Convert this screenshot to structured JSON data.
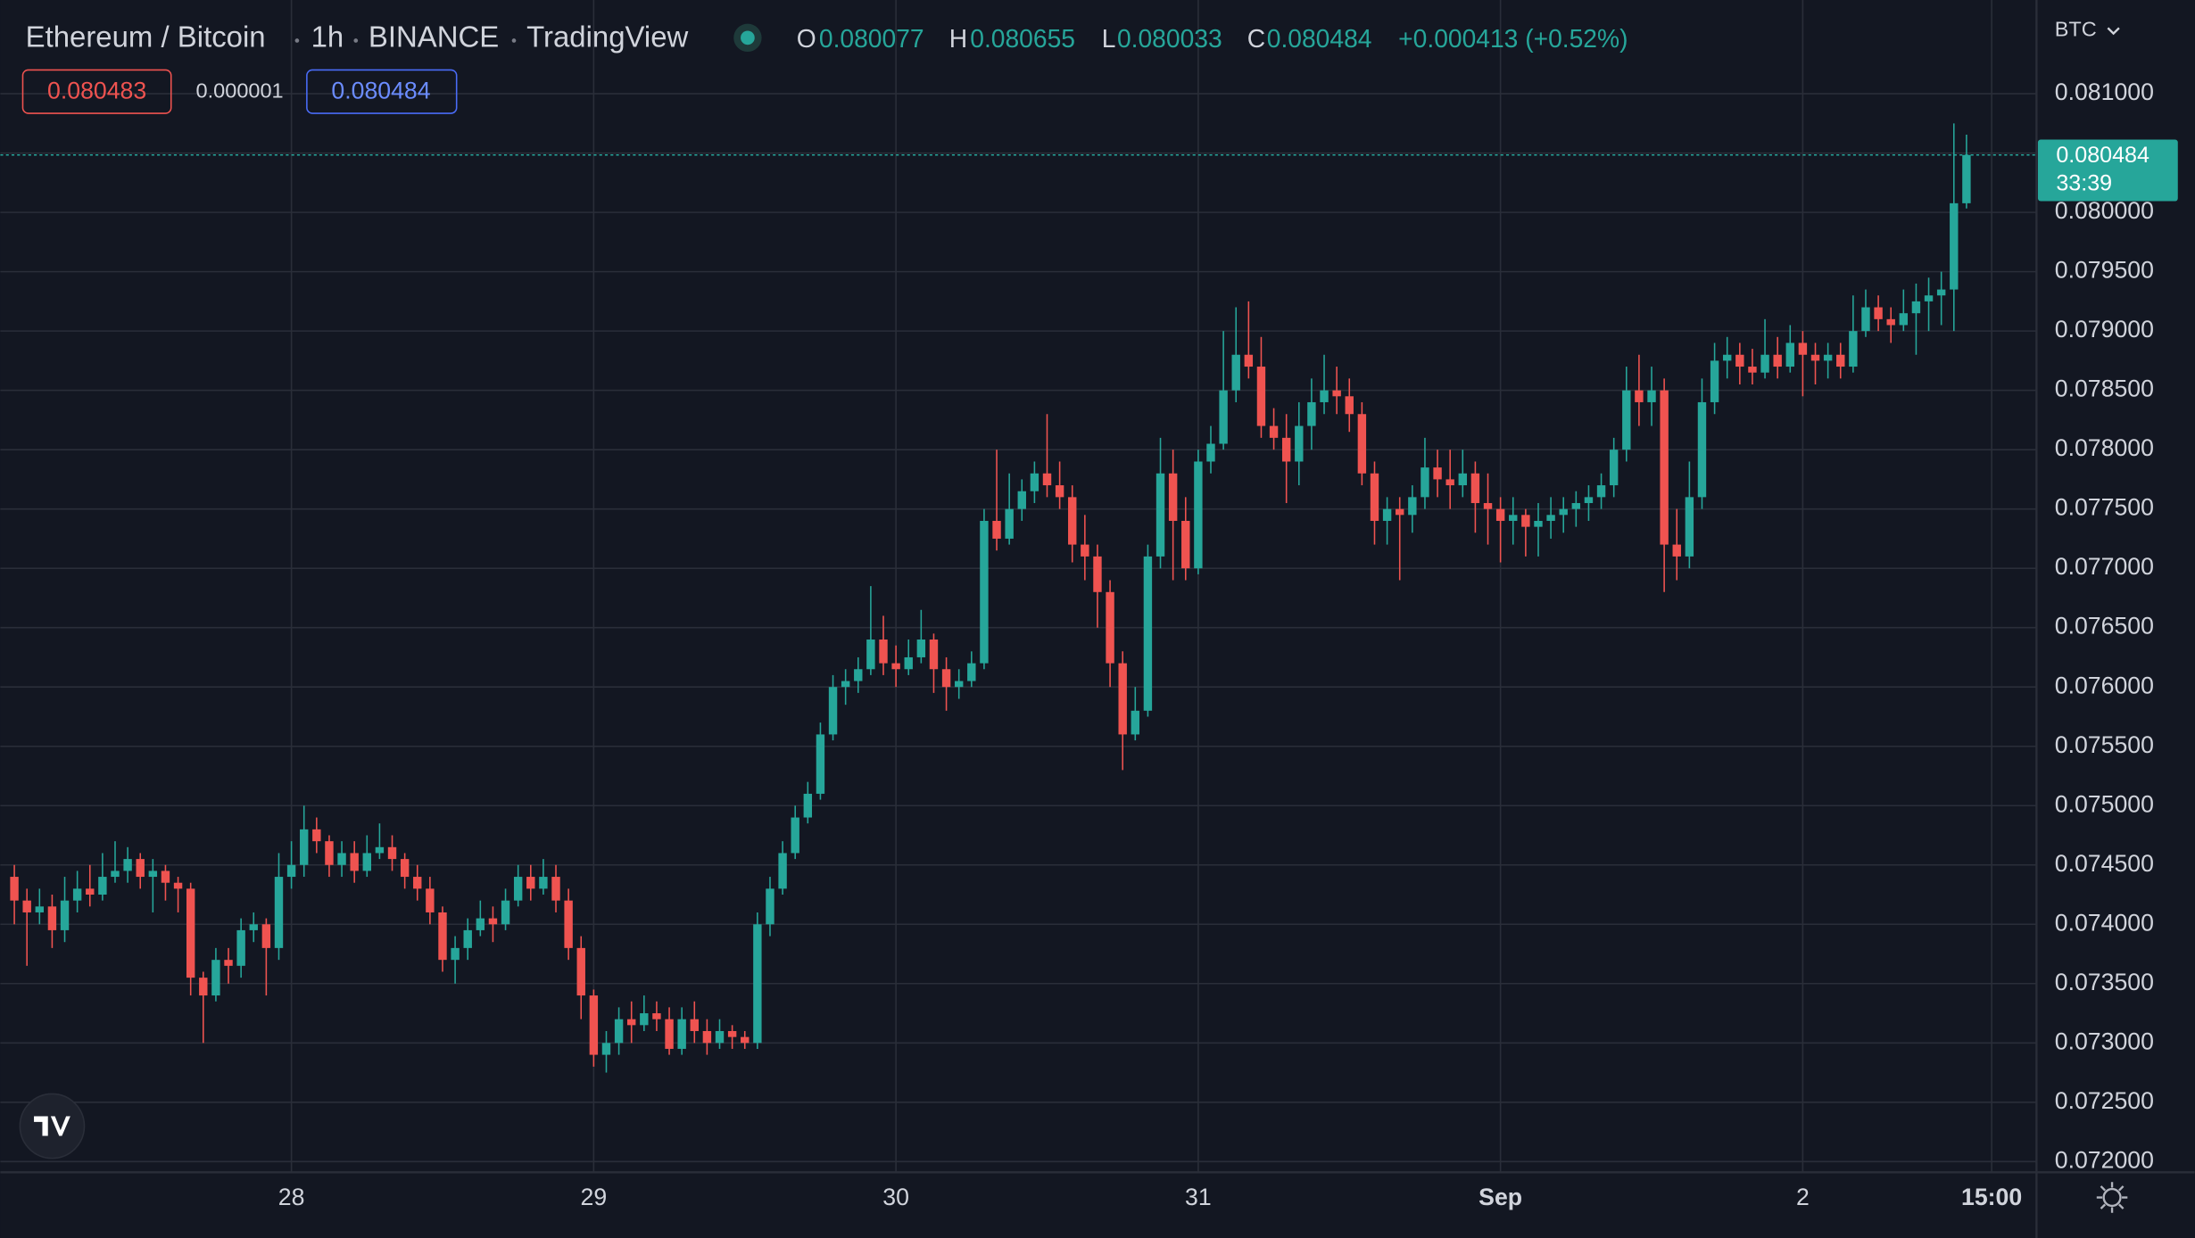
{
  "chart_data": {
    "type": "candlestick",
    "title": "Ethereum / Bitcoin",
    "interval": "1h",
    "exchange": "BINANCE",
    "source": "TradingView",
    "legend": [
      {
        "label": "O",
        "value": "0.080077"
      },
      {
        "label": "H",
        "value": "0.080655"
      },
      {
        "label": "L",
        "value": "0.080033"
      },
      {
        "label": "C",
        "value": "0.080484"
      }
    ],
    "change": "+0.000413 (+0.52%)",
    "bid": "0.080483",
    "spread": "0.000001",
    "ask": "0.080484",
    "currency": "BTC",
    "last_price": {
      "label": "0.080484",
      "countdown": "33:39"
    },
    "up_color": "#26a69a",
    "down_color": "#ef5350",
    "grid": true,
    "xlim": [
      -1.11,
      160.56
    ],
    "xticks": [
      {
        "value": 22,
        "label": "28"
      },
      {
        "value": 46,
        "label": "29"
      },
      {
        "value": 70,
        "label": "30"
      },
      {
        "value": 94,
        "label": "31"
      },
      {
        "value": 118,
        "label": "Sep"
      },
      {
        "value": 142,
        "label": "2"
      },
      {
        "value": 157,
        "label": "15:00"
      }
    ],
    "ylim": [
      0.07191,
      0.08179
    ],
    "yticks": [
      {
        "value": 0.072,
        "label": "0.072000"
      },
      {
        "value": 0.0725,
        "label": "0.072500"
      },
      {
        "value": 0.073,
        "label": "0.073000"
      },
      {
        "value": 0.0735,
        "label": "0.073500"
      },
      {
        "value": 0.074,
        "label": "0.074000"
      },
      {
        "value": 0.0745,
        "label": "0.074500"
      },
      {
        "value": 0.075,
        "label": "0.075000"
      },
      {
        "value": 0.0755,
        "label": "0.075500"
      },
      {
        "value": 0.076,
        "label": "0.076000"
      },
      {
        "value": 0.0765,
        "label": "0.076500"
      },
      {
        "value": 0.077,
        "label": "0.077000"
      },
      {
        "value": 0.0775,
        "label": "0.077500"
      },
      {
        "value": 0.078,
        "label": "0.078000"
      },
      {
        "value": 0.0785,
        "label": "0.078500"
      },
      {
        "value": 0.079,
        "label": "0.079000"
      },
      {
        "value": 0.0795,
        "label": "0.079500"
      },
      {
        "value": 0.08,
        "label": "0.080000"
      },
      {
        "value": 0.0805,
        "label": "0.080500"
      },
      {
        "value": 0.081,
        "label": "0.081000"
      }
    ],
    "candles": [
      [
        0.0744,
        0.0745,
        0.074,
        0.0742
      ],
      [
        0.0742,
        0.0743,
        0.07365,
        0.0741
      ],
      [
        0.0741,
        0.0743,
        0.074,
        0.07415
      ],
      [
        0.07415,
        0.07425,
        0.0738,
        0.07395
      ],
      [
        0.07395,
        0.0744,
        0.07385,
        0.0742
      ],
      [
        0.0742,
        0.07445,
        0.0741,
        0.0743
      ],
      [
        0.0743,
        0.0745,
        0.07415,
        0.07425
      ],
      [
        0.07425,
        0.0746,
        0.0742,
        0.0744
      ],
      [
        0.0744,
        0.0747,
        0.07435,
        0.07445
      ],
      [
        0.07445,
        0.07465,
        0.07435,
        0.07455
      ],
      [
        0.07455,
        0.0746,
        0.0743,
        0.0744
      ],
      [
        0.0744,
        0.07455,
        0.0741,
        0.07445
      ],
      [
        0.07445,
        0.0745,
        0.0742,
        0.07435
      ],
      [
        0.07435,
        0.0744,
        0.0741,
        0.0743
      ],
      [
        0.0743,
        0.07435,
        0.0734,
        0.07355
      ],
      [
        0.07355,
        0.0736,
        0.073,
        0.0734
      ],
      [
        0.0734,
        0.0738,
        0.07335,
        0.0737
      ],
      [
        0.0737,
        0.0738,
        0.0735,
        0.07365
      ],
      [
        0.07365,
        0.07405,
        0.07355,
        0.07395
      ],
      [
        0.07395,
        0.0741,
        0.07385,
        0.074
      ],
      [
        0.074,
        0.07405,
        0.0734,
        0.0738
      ],
      [
        0.0738,
        0.0746,
        0.0737,
        0.0744
      ],
      [
        0.0744,
        0.0747,
        0.0743,
        0.0745
      ],
      [
        0.0745,
        0.075,
        0.0744,
        0.0748
      ],
      [
        0.0748,
        0.0749,
        0.0746,
        0.0747
      ],
      [
        0.0747,
        0.07475,
        0.0744,
        0.0745
      ],
      [
        0.0745,
        0.0747,
        0.0744,
        0.0746
      ],
      [
        0.0746,
        0.0747,
        0.07435,
        0.07445
      ],
      [
        0.07445,
        0.07475,
        0.0744,
        0.0746
      ],
      [
        0.0746,
        0.07485,
        0.07455,
        0.07465
      ],
      [
        0.07465,
        0.07475,
        0.07445,
        0.07455
      ],
      [
        0.07455,
        0.0746,
        0.0743,
        0.0744
      ],
      [
        0.0744,
        0.0745,
        0.0742,
        0.0743
      ],
      [
        0.0743,
        0.0744,
        0.074,
        0.0741
      ],
      [
        0.0741,
        0.07415,
        0.0736,
        0.0737
      ],
      [
        0.0737,
        0.0739,
        0.0735,
        0.0738
      ],
      [
        0.0738,
        0.07405,
        0.0737,
        0.07395
      ],
      [
        0.07395,
        0.0742,
        0.0739,
        0.07405
      ],
      [
        0.07405,
        0.07415,
        0.07385,
        0.074
      ],
      [
        0.074,
        0.0743,
        0.07395,
        0.0742
      ],
      [
        0.0742,
        0.0745,
        0.07415,
        0.0744
      ],
      [
        0.0744,
        0.0745,
        0.0742,
        0.0743
      ],
      [
        0.0743,
        0.07455,
        0.07425,
        0.0744
      ],
      [
        0.0744,
        0.0745,
        0.0741,
        0.0742
      ],
      [
        0.0742,
        0.0743,
        0.0737,
        0.0738
      ],
      [
        0.0738,
        0.0739,
        0.0732,
        0.0734
      ],
      [
        0.0734,
        0.07345,
        0.0728,
        0.0729
      ],
      [
        0.0729,
        0.0731,
        0.07275,
        0.073
      ],
      [
        0.073,
        0.0733,
        0.0729,
        0.0732
      ],
      [
        0.0732,
        0.07335,
        0.073,
        0.07315
      ],
      [
        0.07315,
        0.0734,
        0.0731,
        0.07325
      ],
      [
        0.07325,
        0.07335,
        0.0731,
        0.0732
      ],
      [
        0.0732,
        0.0733,
        0.0729,
        0.07295
      ],
      [
        0.07295,
        0.0733,
        0.0729,
        0.0732
      ],
      [
        0.0732,
        0.07335,
        0.073,
        0.0731
      ],
      [
        0.0731,
        0.0732,
        0.0729,
        0.073
      ],
      [
        0.073,
        0.0732,
        0.07295,
        0.0731
      ],
      [
        0.0731,
        0.07315,
        0.07295,
        0.07305
      ],
      [
        0.07305,
        0.0731,
        0.07295,
        0.073
      ],
      [
        0.073,
        0.0741,
        0.07295,
        0.074
      ],
      [
        0.074,
        0.0744,
        0.0739,
        0.0743
      ],
      [
        0.0743,
        0.0747,
        0.07425,
        0.0746
      ],
      [
        0.0746,
        0.075,
        0.07455,
        0.0749
      ],
      [
        0.0749,
        0.0752,
        0.07485,
        0.0751
      ],
      [
        0.0751,
        0.0757,
        0.07505,
        0.0756
      ],
      [
        0.0756,
        0.0761,
        0.07555,
        0.076
      ],
      [
        0.076,
        0.07615,
        0.07585,
        0.07605
      ],
      [
        0.07605,
        0.07625,
        0.07595,
        0.07615
      ],
      [
        0.07615,
        0.07685,
        0.0761,
        0.0764
      ],
      [
        0.0764,
        0.0766,
        0.0761,
        0.0762
      ],
      [
        0.0762,
        0.07635,
        0.076,
        0.07615
      ],
      [
        0.07615,
        0.0764,
        0.0761,
        0.07625
      ],
      [
        0.07625,
        0.07665,
        0.0762,
        0.0764
      ],
      [
        0.0764,
        0.07645,
        0.07595,
        0.07615
      ],
      [
        0.07615,
        0.07625,
        0.0758,
        0.076
      ],
      [
        0.076,
        0.07615,
        0.0759,
        0.07605
      ],
      [
        0.07605,
        0.0763,
        0.076,
        0.0762
      ],
      [
        0.0762,
        0.0775,
        0.07615,
        0.0774
      ],
      [
        0.0774,
        0.078,
        0.07715,
        0.07725
      ],
      [
        0.07725,
        0.0778,
        0.0772,
        0.0775
      ],
      [
        0.0775,
        0.07775,
        0.0774,
        0.07765
      ],
      [
        0.07765,
        0.0779,
        0.07755,
        0.0778
      ],
      [
        0.0778,
        0.0783,
        0.0776,
        0.0777
      ],
      [
        0.0777,
        0.0779,
        0.0775,
        0.0776
      ],
      [
        0.0776,
        0.0777,
        0.07705,
        0.0772
      ],
      [
        0.0772,
        0.07745,
        0.0769,
        0.0771
      ],
      [
        0.0771,
        0.0772,
        0.0765,
        0.0768
      ],
      [
        0.0768,
        0.0769,
        0.076,
        0.0762
      ],
      [
        0.0762,
        0.0763,
        0.0753,
        0.0756
      ],
      [
        0.0756,
        0.076,
        0.07555,
        0.0758
      ],
      [
        0.0758,
        0.0772,
        0.07575,
        0.0771
      ],
      [
        0.0771,
        0.0781,
        0.077,
        0.0778
      ],
      [
        0.0778,
        0.078,
        0.0769,
        0.0774
      ],
      [
        0.0774,
        0.0776,
        0.0769,
        0.077
      ],
      [
        0.077,
        0.078,
        0.07695,
        0.0779
      ],
      [
        0.0779,
        0.0782,
        0.0778,
        0.07805
      ],
      [
        0.07805,
        0.079,
        0.078,
        0.0785
      ],
      [
        0.0785,
        0.0792,
        0.0784,
        0.0788
      ],
      [
        0.0788,
        0.07925,
        0.0786,
        0.0787
      ],
      [
        0.0787,
        0.07895,
        0.0781,
        0.0782
      ],
      [
        0.0782,
        0.07835,
        0.078,
        0.0781
      ],
      [
        0.0781,
        0.0783,
        0.07755,
        0.0779
      ],
      [
        0.0779,
        0.0784,
        0.0777,
        0.0782
      ],
      [
        0.0782,
        0.0786,
        0.078,
        0.0784
      ],
      [
        0.0784,
        0.0788,
        0.0783,
        0.0785
      ],
      [
        0.0785,
        0.0787,
        0.0783,
        0.07845
      ],
      [
        0.07845,
        0.0786,
        0.07815,
        0.0783
      ],
      [
        0.0783,
        0.0784,
        0.0777,
        0.0778
      ],
      [
        0.0778,
        0.0779,
        0.0772,
        0.0774
      ],
      [
        0.0774,
        0.0776,
        0.0772,
        0.0775
      ],
      [
        0.0775,
        0.0776,
        0.0769,
        0.07745
      ],
      [
        0.07745,
        0.0777,
        0.0773,
        0.0776
      ],
      [
        0.0776,
        0.0781,
        0.0775,
        0.07785
      ],
      [
        0.07785,
        0.078,
        0.0776,
        0.07775
      ],
      [
        0.07775,
        0.078,
        0.0775,
        0.0777
      ],
      [
        0.0777,
        0.078,
        0.0776,
        0.0778
      ],
      [
        0.0778,
        0.0779,
        0.0773,
        0.07755
      ],
      [
        0.07755,
        0.0778,
        0.0772,
        0.0775
      ],
      [
        0.0775,
        0.0776,
        0.07705,
        0.0774
      ],
      [
        0.0774,
        0.0776,
        0.0772,
        0.07745
      ],
      [
        0.07745,
        0.0775,
        0.0771,
        0.07735
      ],
      [
        0.07735,
        0.07755,
        0.0771,
        0.0774
      ],
      [
        0.0774,
        0.0776,
        0.07725,
        0.07745
      ],
      [
        0.07745,
        0.0776,
        0.0773,
        0.0775
      ],
      [
        0.0775,
        0.07765,
        0.07735,
        0.07755
      ],
      [
        0.07755,
        0.0777,
        0.0774,
        0.0776
      ],
      [
        0.0776,
        0.0778,
        0.0775,
        0.0777
      ],
      [
        0.0777,
        0.0781,
        0.0776,
        0.078
      ],
      [
        0.078,
        0.0787,
        0.0779,
        0.0785
      ],
      [
        0.0785,
        0.0788,
        0.0782,
        0.0784
      ],
      [
        0.0784,
        0.0787,
        0.0782,
        0.0785
      ],
      [
        0.0785,
        0.0786,
        0.0768,
        0.0772
      ],
      [
        0.0772,
        0.0775,
        0.0769,
        0.0771
      ],
      [
        0.0771,
        0.0779,
        0.077,
        0.0776
      ],
      [
        0.0776,
        0.0786,
        0.0775,
        0.0784
      ],
      [
        0.0784,
        0.0789,
        0.0783,
        0.07875
      ],
      [
        0.07875,
        0.07895,
        0.0786,
        0.0788
      ],
      [
        0.0788,
        0.0789,
        0.07855,
        0.0787
      ],
      [
        0.0787,
        0.07885,
        0.07855,
        0.07865
      ],
      [
        0.07865,
        0.0791,
        0.0786,
        0.0788
      ],
      [
        0.0788,
        0.07895,
        0.0786,
        0.0787
      ],
      [
        0.0787,
        0.07905,
        0.07865,
        0.0789
      ],
      [
        0.0789,
        0.079,
        0.07845,
        0.0788
      ],
      [
        0.0788,
        0.0789,
        0.07855,
        0.07875
      ],
      [
        0.07875,
        0.0789,
        0.0786,
        0.0788
      ],
      [
        0.0788,
        0.0789,
        0.0786,
        0.0787
      ],
      [
        0.0787,
        0.0793,
        0.07865,
        0.079
      ],
      [
        0.079,
        0.07935,
        0.07895,
        0.0792
      ],
      [
        0.0792,
        0.0793,
        0.079,
        0.0791
      ],
      [
        0.0791,
        0.0792,
        0.0789,
        0.07905
      ],
      [
        0.07905,
        0.07935,
        0.079,
        0.07915
      ],
      [
        0.07915,
        0.0794,
        0.0788,
        0.07925
      ],
      [
        0.07925,
        0.07945,
        0.079,
        0.0793
      ],
      [
        0.0793,
        0.0795,
        0.07905,
        0.07935
      ],
      [
        0.07935,
        0.08075,
        0.079,
        0.080077
      ],
      [
        0.080077,
        0.080655,
        0.080033,
        0.080484
      ]
    ]
  }
}
